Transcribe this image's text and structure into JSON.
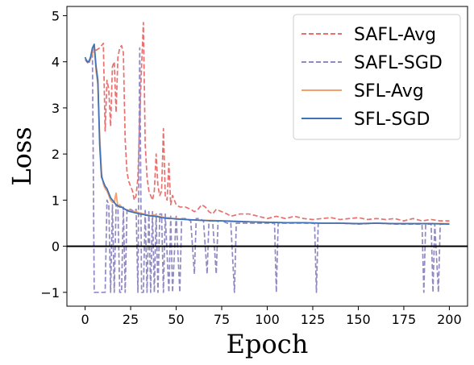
{
  "chart_data": {
    "type": "line",
    "xlabel": "Epoch",
    "ylabel": "Loss",
    "xlim": [
      -10,
      210
    ],
    "ylim": [
      -1.3,
      5.2
    ],
    "xticks": [
      0,
      25,
      50,
      75,
      100,
      125,
      150,
      175,
      200
    ],
    "yticks": [
      -1,
      0,
      1,
      2,
      3,
      4,
      5
    ],
    "hline": 0,
    "legend_position": "top-right",
    "series": [
      {
        "name": "SAFL-Avg",
        "color": "#e8706e",
        "style": "dashed",
        "points": [
          [
            0,
            4.05
          ],
          [
            2,
            3.95
          ],
          [
            4,
            4.2
          ],
          [
            6,
            4.25
          ],
          [
            8,
            4.3
          ],
          [
            10,
            4.4
          ],
          [
            11,
            2.5
          ],
          [
            12,
            3.6
          ],
          [
            13,
            3.4
          ],
          [
            14,
            2.6
          ],
          [
            15,
            3.9
          ],
          [
            16,
            4.0
          ],
          [
            17,
            2.9
          ],
          [
            18,
            4.1
          ],
          [
            19,
            4.3
          ],
          [
            20,
            4.35
          ],
          [
            21,
            4.2
          ],
          [
            22,
            2.3
          ],
          [
            23,
            1.6
          ],
          [
            24,
            1.4
          ],
          [
            25,
            1.3
          ],
          [
            26,
            1.2
          ],
          [
            27,
            1.0
          ],
          [
            28,
            1.1
          ],
          [
            29,
            1.5
          ],
          [
            30,
            2.8
          ],
          [
            31,
            3.9
          ],
          [
            32,
            4.85
          ],
          [
            33,
            2.2
          ],
          [
            34,
            1.5
          ],
          [
            35,
            1.2
          ],
          [
            36,
            1.1
          ],
          [
            37,
            1.0
          ],
          [
            38,
            1.2
          ],
          [
            39,
            2.0
          ],
          [
            40,
            1.3
          ],
          [
            41,
            1.1
          ],
          [
            42,
            1.2
          ],
          [
            43,
            2.55
          ],
          [
            44,
            1.1
          ],
          [
            45,
            1.0
          ],
          [
            46,
            1.8
          ],
          [
            47,
            0.9
          ],
          [
            48,
            1.1
          ],
          [
            50,
            0.9
          ],
          [
            52,
            0.85
          ],
          [
            55,
            0.85
          ],
          [
            58,
            0.8
          ],
          [
            60,
            0.75
          ],
          [
            62,
            0.8
          ],
          [
            64,
            0.9
          ],
          [
            66,
            0.85
          ],
          [
            68,
            0.75
          ],
          [
            70,
            0.7
          ],
          [
            72,
            0.8
          ],
          [
            75,
            0.75
          ],
          [
            78,
            0.7
          ],
          [
            80,
            0.65
          ],
          [
            85,
            0.7
          ],
          [
            90,
            0.7
          ],
          [
            95,
            0.65
          ],
          [
            100,
            0.6
          ],
          [
            105,
            0.65
          ],
          [
            110,
            0.6
          ],
          [
            115,
            0.65
          ],
          [
            120,
            0.6
          ],
          [
            125,
            0.58
          ],
          [
            130,
            0.6
          ],
          [
            135,
            0.62
          ],
          [
            140,
            0.58
          ],
          [
            145,
            0.6
          ],
          [
            150,
            0.62
          ],
          [
            155,
            0.58
          ],
          [
            160,
            0.6
          ],
          [
            165,
            0.58
          ],
          [
            170,
            0.6
          ],
          [
            175,
            0.55
          ],
          [
            180,
            0.6
          ],
          [
            185,
            0.55
          ],
          [
            190,
            0.58
          ],
          [
            195,
            0.55
          ],
          [
            200,
            0.55
          ]
        ]
      },
      {
        "name": "SAFL-SGD",
        "color": "#9089c2",
        "style": "dashed",
        "points": [
          [
            0,
            4.05
          ],
          [
            2,
            4.0
          ],
          [
            4,
            4.2
          ],
          [
            5,
            -1.0
          ],
          [
            7,
            -1.0
          ],
          [
            9,
            -1.0
          ],
          [
            11,
            -1.0
          ],
          [
            12,
            1.0
          ],
          [
            13,
            0.9
          ],
          [
            14,
            -1.0
          ],
          [
            15,
            0.9
          ],
          [
            16,
            -1.0
          ],
          [
            17,
            0.9
          ],
          [
            18,
            0.85
          ],
          [
            19,
            -1.0
          ],
          [
            20,
            -1.0
          ],
          [
            21,
            0.85
          ],
          [
            22,
            -1.0
          ],
          [
            23,
            0.8
          ],
          [
            25,
            0.8
          ],
          [
            27,
            0.75
          ],
          [
            28,
            0.8
          ],
          [
            29,
            -1.0
          ],
          [
            30,
            4.3
          ],
          [
            31,
            -1.0
          ],
          [
            32,
            -1.0
          ],
          [
            33,
            0.8
          ],
          [
            34,
            -1.0
          ],
          [
            35,
            0.75
          ],
          [
            36,
            -1.0
          ],
          [
            37,
            0.75
          ],
          [
            38,
            -1.0
          ],
          [
            39,
            0.7
          ],
          [
            40,
            -1.0
          ],
          [
            41,
            0.7
          ],
          [
            42,
            0.7
          ],
          [
            43,
            -1.0
          ],
          [
            44,
            0.7
          ],
          [
            46,
            -1.0
          ],
          [
            47,
            0.65
          ],
          [
            48,
            -1.0
          ],
          [
            50,
            0.65
          ],
          [
            52,
            -1.0
          ],
          [
            53,
            0.6
          ],
          [
            55,
            0.6
          ],
          [
            58,
            0.55
          ],
          [
            60,
            -0.6
          ],
          [
            61,
            0.6
          ],
          [
            63,
            0.6
          ],
          [
            65,
            0.55
          ],
          [
            67,
            -0.6
          ],
          [
            68,
            0.55
          ],
          [
            70,
            0.55
          ],
          [
            72,
            -0.6
          ],
          [
            73,
            0.55
          ],
          [
            75,
            0.55
          ],
          [
            78,
            0.5
          ],
          [
            80,
            0.5
          ],
          [
            82,
            -1.0
          ],
          [
            83,
            0.5
          ],
          [
            85,
            0.5
          ],
          [
            90,
            0.5
          ],
          [
            95,
            0.5
          ],
          [
            100,
            0.5
          ],
          [
            104,
            0.5
          ],
          [
            105,
            -1.0
          ],
          [
            106,
            0.5
          ],
          [
            110,
            0.5
          ],
          [
            115,
            0.5
          ],
          [
            120,
            0.5
          ],
          [
            126,
            0.5
          ],
          [
            127,
            -1.0
          ],
          [
            128,
            0.5
          ],
          [
            130,
            0.5
          ],
          [
            140,
            0.5
          ],
          [
            150,
            0.48
          ],
          [
            160,
            0.5
          ],
          [
            170,
            0.48
          ],
          [
            180,
            0.48
          ],
          [
            185,
            0.48
          ],
          [
            186,
            -1.0
          ],
          [
            187,
            0.48
          ],
          [
            190,
            0.48
          ],
          [
            191,
            -1.0
          ],
          [
            192,
            0.48
          ],
          [
            194,
            -1.0
          ],
          [
            195,
            0.48
          ],
          [
            200,
            0.48
          ]
        ]
      },
      {
        "name": "SFL-Avg",
        "color": "#f4a06c",
        "style": "solid",
        "points": [
          [
            0,
            4.05
          ],
          [
            1,
            4.0
          ],
          [
            2,
            4.0
          ],
          [
            3,
            4.05
          ],
          [
            4,
            4.2
          ],
          [
            5,
            4.35
          ],
          [
            6,
            3.8
          ],
          [
            7,
            3.5
          ],
          [
            8,
            2.4
          ],
          [
            9,
            1.6
          ],
          [
            10,
            1.35
          ],
          [
            11,
            1.25
          ],
          [
            12,
            1.2
          ],
          [
            13,
            1.1
          ],
          [
            14,
            1.0
          ],
          [
            15,
            0.95
          ],
          [
            16,
            0.95
          ],
          [
            17,
            1.15
          ],
          [
            18,
            0.85
          ],
          [
            19,
            0.9
          ],
          [
            20,
            0.85
          ],
          [
            22,
            0.8
          ],
          [
            24,
            0.78
          ],
          [
            26,
            0.75
          ],
          [
            28,
            0.75
          ],
          [
            30,
            0.72
          ],
          [
            32,
            0.7
          ],
          [
            34,
            0.68
          ],
          [
            36,
            0.66
          ],
          [
            38,
            0.68
          ],
          [
            40,
            0.65
          ],
          [
            42,
            0.64
          ],
          [
            44,
            0.62
          ],
          [
            46,
            0.62
          ],
          [
            48,
            0.6
          ],
          [
            50,
            0.6
          ],
          [
            55,
            0.58
          ],
          [
            60,
            0.57
          ],
          [
            65,
            0.56
          ],
          [
            70,
            0.56
          ],
          [
            75,
            0.55
          ],
          [
            80,
            0.55
          ],
          [
            90,
            0.53
          ],
          [
            100,
            0.52
          ],
          [
            110,
            0.51
          ],
          [
            120,
            0.51
          ],
          [
            130,
            0.5
          ],
          [
            140,
            0.5
          ],
          [
            150,
            0.49
          ],
          [
            160,
            0.5
          ],
          [
            170,
            0.49
          ],
          [
            180,
            0.49
          ],
          [
            190,
            0.49
          ],
          [
            200,
            0.49
          ]
        ]
      },
      {
        "name": "SFL-SGD",
        "color": "#3f72b6",
        "style": "solid",
        "points": [
          [
            0,
            4.1
          ],
          [
            1,
            4.0
          ],
          [
            2,
            4.0
          ],
          [
            3,
            4.1
          ],
          [
            4,
            4.3
          ],
          [
            5,
            4.38
          ],
          [
            6,
            3.9
          ],
          [
            7,
            3.6
          ],
          [
            8,
            2.2
          ],
          [
            9,
            1.5
          ],
          [
            10,
            1.4
          ],
          [
            11,
            1.3
          ],
          [
            12,
            1.25
          ],
          [
            13,
            1.15
          ],
          [
            14,
            1.05
          ],
          [
            15,
            1.0
          ],
          [
            16,
            0.95
          ],
          [
            17,
            0.9
          ],
          [
            18,
            0.88
          ],
          [
            19,
            0.85
          ],
          [
            20,
            0.85
          ],
          [
            22,
            0.8
          ],
          [
            24,
            0.76
          ],
          [
            26,
            0.74
          ],
          [
            28,
            0.72
          ],
          [
            30,
            0.7
          ],
          [
            32,
            0.69
          ],
          [
            34,
            0.67
          ],
          [
            36,
            0.66
          ],
          [
            38,
            0.65
          ],
          [
            40,
            0.64
          ],
          [
            42,
            0.62
          ],
          [
            44,
            0.61
          ],
          [
            46,
            0.6
          ],
          [
            48,
            0.6
          ],
          [
            50,
            0.59
          ],
          [
            55,
            0.58
          ],
          [
            60,
            0.57
          ],
          [
            65,
            0.56
          ],
          [
            70,
            0.55
          ],
          [
            75,
            0.55
          ],
          [
            80,
            0.54
          ],
          [
            90,
            0.53
          ],
          [
            100,
            0.52
          ],
          [
            110,
            0.51
          ],
          [
            120,
            0.51
          ],
          [
            130,
            0.5
          ],
          [
            140,
            0.5
          ],
          [
            150,
            0.49
          ],
          [
            160,
            0.5
          ],
          [
            170,
            0.49
          ],
          [
            180,
            0.49
          ],
          [
            190,
            0.49
          ],
          [
            200,
            0.48
          ]
        ]
      }
    ]
  }
}
